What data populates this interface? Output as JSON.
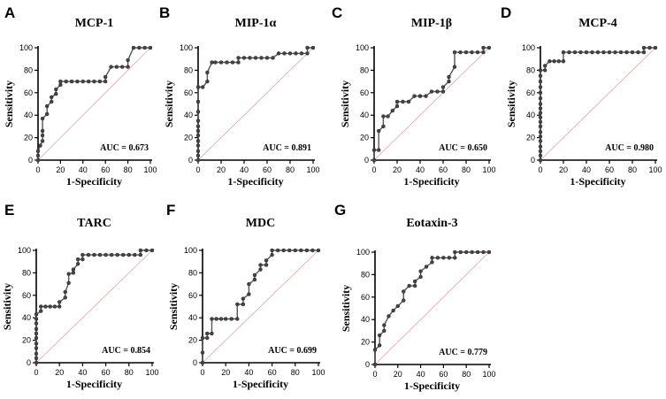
{
  "figure": {
    "x_label": "1-Specificity",
    "y_label": "Sensitivity",
    "tick_labels": [
      "0",
      "20",
      "40",
      "60",
      "80",
      "100"
    ],
    "colors": {
      "roc": "#555555",
      "points": "#444444",
      "reference": "#e8a0a8",
      "axes": "#000000"
    }
  },
  "chart_data": [
    {
      "letter": "A",
      "type": "line",
      "title": "MCP-1",
      "auc_label": "AUC = 0.673",
      "xlabel": "1-Specificity",
      "ylabel": "Sensitivity",
      "xlim": [
        0,
        100
      ],
      "ylim": [
        0,
        100
      ],
      "x": [
        0,
        0,
        0,
        2,
        4,
        4,
        4,
        4,
        8,
        8,
        12,
        12,
        16,
        16,
        20,
        20,
        25,
        30,
        35,
        40,
        45,
        50,
        55,
        60,
        60,
        65,
        70,
        75,
        80,
        80,
        85,
        90,
        95,
        100
      ],
      "y": [
        0,
        4,
        8,
        13,
        17,
        22,
        26,
        37,
        41,
        48,
        52,
        56,
        59,
        63,
        67,
        70,
        70,
        70,
        70,
        70,
        70,
        70,
        70,
        70,
        74,
        83,
        83,
        83,
        83,
        89,
        100,
        100,
        100,
        100
      ]
    },
    {
      "letter": "B",
      "type": "line",
      "title": "MIP-1α",
      "auc_label": "AUC = 0.891",
      "xlabel": "1-Specificity",
      "ylabel": "Sensitivity",
      "xlim": [
        0,
        100
      ],
      "ylim": [
        0,
        100
      ],
      "x": [
        0,
        0,
        0,
        0,
        0,
        0,
        0,
        0,
        0,
        0,
        0,
        0,
        4,
        8,
        8,
        12,
        15,
        20,
        25,
        30,
        35,
        35,
        40,
        45,
        50,
        55,
        60,
        65,
        70,
        75,
        80,
        85,
        90,
        95,
        95,
        100
      ],
      "y": [
        0,
        4,
        8,
        13,
        17,
        22,
        26,
        30,
        35,
        43,
        52,
        65,
        65,
        70,
        78,
        87,
        87,
        87,
        87,
        87,
        87,
        91,
        91,
        91,
        91,
        91,
        91,
        91,
        95,
        95,
        95,
        95,
        95,
        95,
        100,
        100
      ]
    },
    {
      "letter": "C",
      "type": "line",
      "title": "MIP-1β",
      "auc_label": "AUC = 0.650",
      "xlabel": "1-Specificity",
      "ylabel": "Sensitivity",
      "xlim": [
        0,
        100
      ],
      "ylim": [
        0,
        100
      ],
      "x": [
        0,
        0,
        4,
        4,
        8,
        8,
        12,
        16,
        20,
        20,
        25,
        30,
        35,
        40,
        40,
        45,
        50,
        55,
        60,
        60,
        65,
        65,
        70,
        70,
        75,
        80,
        85,
        90,
        95,
        95,
        100
      ],
      "y": [
        0,
        9,
        9,
        26,
        30,
        39,
        39,
        44,
        48,
        52,
        52,
        52,
        57,
        57,
        57,
        57,
        61,
        61,
        61,
        65,
        70,
        74,
        83,
        96,
        96,
        96,
        96,
        96,
        96,
        100,
        100
      ]
    },
    {
      "letter": "D",
      "type": "line",
      "title": "MCP-4",
      "auc_label": "AUC = 0.980",
      "xlabel": "1-Specificity",
      "ylabel": "Sensitivity",
      "xlim": [
        0,
        100
      ],
      "ylim": [
        0,
        100
      ],
      "x": [
        0,
        0,
        0,
        0,
        0,
        0,
        0,
        0,
        0,
        0,
        0,
        0,
        0,
        0,
        0,
        0,
        0,
        0,
        0,
        4,
        4,
        8,
        12,
        16,
        20,
        20,
        25,
        30,
        35,
        40,
        45,
        50,
        55,
        60,
        65,
        70,
        75,
        80,
        85,
        90,
        90,
        95,
        100
      ],
      "y": [
        0,
        4,
        8,
        12,
        17,
        21,
        25,
        30,
        34,
        38,
        42,
        46,
        50,
        55,
        60,
        65,
        70,
        75,
        80,
        80,
        84,
        88,
        88,
        88,
        88,
        96,
        96,
        96,
        96,
        96,
        96,
        96,
        96,
        96,
        96,
        96,
        96,
        96,
        96,
        96,
        100,
        100,
        100
      ]
    },
    {
      "letter": "E",
      "type": "line",
      "title": "TARC",
      "auc_label": "AUC = 0.854",
      "xlabel": "1-Specificity",
      "ylabel": "Sensitivity",
      "xlim": [
        0,
        100
      ],
      "ylim": [
        0,
        100
      ],
      "x": [
        0,
        0,
        0,
        0,
        0,
        0,
        0,
        0,
        0,
        0,
        0,
        4,
        4,
        8,
        12,
        16,
        20,
        20,
        25,
        25,
        28,
        28,
        32,
        32,
        36,
        36,
        40,
        40,
        45,
        50,
        55,
        60,
        65,
        70,
        75,
        80,
        85,
        90,
        90,
        95,
        100
      ],
      "y": [
        0,
        4,
        8,
        13,
        17,
        22,
        26,
        30,
        35,
        39,
        43,
        46,
        50,
        50,
        50,
        50,
        50,
        54,
        58,
        63,
        71,
        79,
        80,
        83,
        88,
        92,
        92,
        96,
        96,
        96,
        96,
        96,
        96,
        96,
        96,
        96,
        96,
        96,
        100,
        100,
        100
      ]
    },
    {
      "letter": "F",
      "type": "line",
      "title": "MDC",
      "auc_label": "AUC = 0.699",
      "xlabel": "1-Specificity",
      "ylabel": "Sensitivity",
      "xlim": [
        0,
        100
      ],
      "ylim": [
        0,
        100
      ],
      "x": [
        0,
        0,
        0,
        4,
        4,
        8,
        8,
        12,
        16,
        20,
        25,
        30,
        30,
        35,
        35,
        40,
        40,
        45,
        45,
        50,
        50,
        55,
        55,
        60,
        60,
        65,
        70,
        75,
        80,
        85,
        90,
        95,
        100
      ],
      "y": [
        0,
        9,
        22,
        22,
        26,
        26,
        39,
        39,
        39,
        39,
        39,
        39,
        52,
        52,
        57,
        61,
        70,
        74,
        78,
        83,
        87,
        87,
        91,
        96,
        100,
        100,
        100,
        100,
        100,
        100,
        100,
        100,
        100
      ]
    },
    {
      "letter": "G",
      "type": "line",
      "title": "Eotaxin-3",
      "auc_label": "AUC = 0.779",
      "xlabel": "1-Specificity",
      "ylabel": "Sensitivity",
      "xlim": [
        0,
        100
      ],
      "ylim": [
        0,
        100
      ],
      "x": [
        0,
        0,
        4,
        4,
        8,
        8,
        12,
        16,
        20,
        25,
        25,
        30,
        35,
        35,
        40,
        40,
        45,
        50,
        50,
        55,
        60,
        65,
        70,
        70,
        75,
        80,
        85,
        90,
        95,
        100
      ],
      "y": [
        0,
        13,
        17,
        26,
        30,
        35,
        43,
        48,
        52,
        57,
        65,
        70,
        70,
        74,
        78,
        83,
        87,
        91,
        95,
        95,
        95,
        95,
        95,
        100,
        100,
        100,
        100,
        100,
        100,
        100
      ]
    }
  ]
}
